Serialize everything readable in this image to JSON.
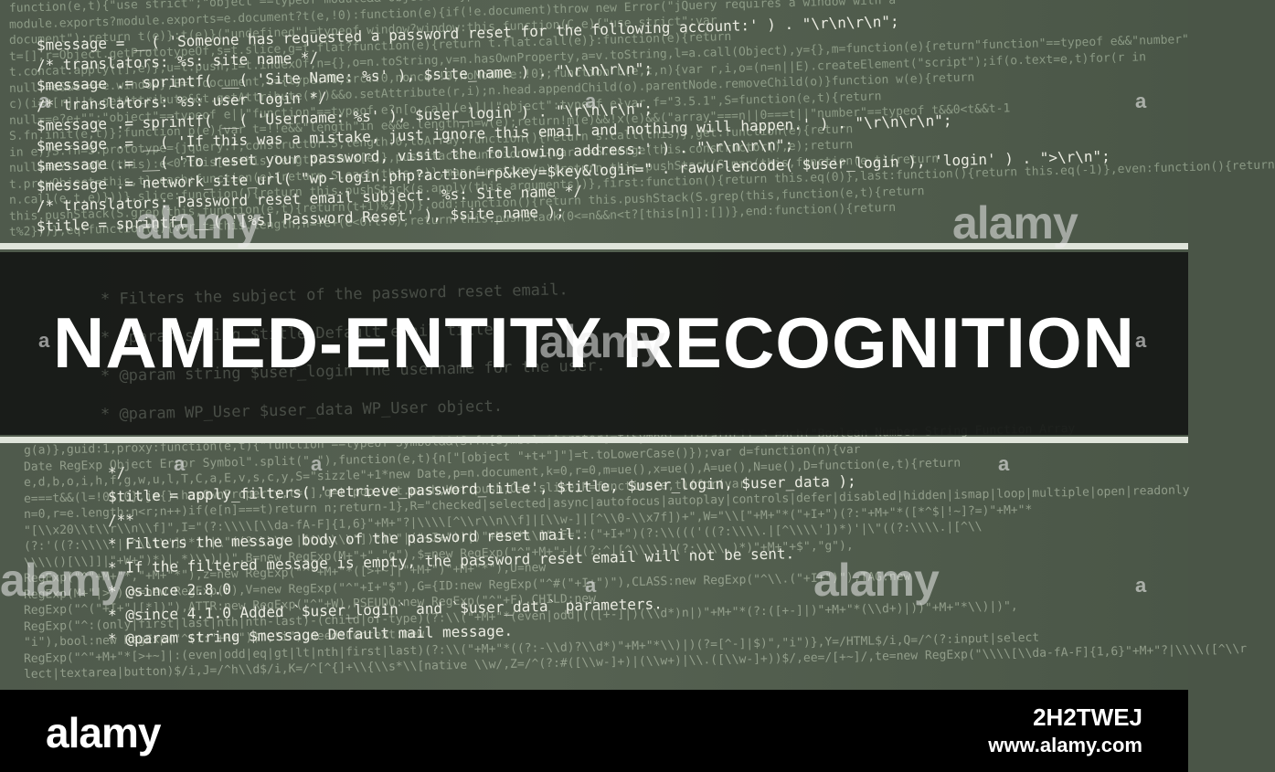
{
  "title": "NAMED-ENTITY RECOGNITION",
  "watermark": {
    "brand": "alamy",
    "mark": "a"
  },
  "footer": {
    "logo": "alamy",
    "image_id": "2H2TWEJ",
    "url": "www.alamy.com"
  },
  "colors": {
    "band": "#161815",
    "divider": "#dfe4da",
    "background": "#4f5a4c",
    "footer": "#000000"
  },
  "code_top": [
    "function(e,t){\"use strict\";\"object\"==typeof module&&\"object\"==typeof",
    "module.exports?module.exports=e.document?t(e,!0):function(e){if(!e.document)throw new Error(\"jQuery requires a window with a",
    "document\");return t(e)}:t(e)}(\"undefined\"!=typeof window?window:this,function(C,e){\"use strict\";var",
    "t=[],r=Object.getPrototypeOf,s=t.slice,g=t.flat?function(e){return t.flat.call(e)}:function(e){return",
    "t.concat.apply([],e)},u=t.push,i=t.indexOf,n={},o=n.toString,v=n.hasOwnProperty,a=v.toString,l=a.call(Object),y={},m=function(e){return\"function\"==typeof e&&\"number\"",
    "null!=e&&e===e.window},E=C.document,c={type:!0,src:!0,nonce:!0,noModule:!0};function b(e,t,n){var r,i,o=(n=n||E).createElement(\"script\");if(o.text=e,t)for(r in",
    "c)(i=t[r]||t.getAttribute&&t.getAttribute(r))&&o.setAttribute(r,i);n.head.appendChild(o).parentNode.removeChild(o)}function w(e){return",
    "null==e?e+\"\":\"object\"==typeof e||\"function\"==typeof e?n[o.call(e)]||\"object\":typeof e}var f=\"3.5.1\",S=function(e,t){return",
    "S.fn.init(e,t)};function p(e){var t=!!e&&\"length\"in e&&e.length,n=w(e);return!m(e)&&!x(e)&&(\"array\"===n||0===t||\"number\"==typeof t&&0<t&&t-1",
    "in e)}S.fn=S.prototype={jquery:f,constructor:S,length:0,toArray:function(){return s.call(this)},get:function(e){return",
    "null==e?s.call(this):e<0?this[e+this.length]:this[e]},pushStack:function(e){var t=S.merge(this.constructor(),e);return",
    "t.prevObject=this,t},each:function(e){return S.each(this,e)},map:function(n){return this.pushStack(S.map(this,function(e,t){return",
    "n.call(e,t,e)}))},slice:function(){return this.pushStack(s.apply(this,arguments))},first:function(){return this.eq(0)},last:function(){return this.eq(-1)},even:function(){return",
    "this.pushStack(S.grep(this,function(e,t){return(t+1)%2}))},odd:function(){return this.pushStack(S.grep(this,function(e,t){return",
    "t%2}))},eq:function(e){var t=this.length,n=+e+(e<0?t:0);return this.pushStack(0<=n&&n<t?[this[n]]:[])},end:function(){return"
  ],
  "php_top": [
    "$message = __( 'Someone has requested a password reset for the following account:' ) . \"\\r\\n\\r\\n\";",
    "/* translators: %s: site name */",
    "$message .= sprintf( __( 'Site Name: %s' ), $site_name ) . \"\\r\\n\\r\\n\";",
    "/* translators: %s: user login */",
    "$message .= sprintf( __( 'Username: %s' ), $user_login ) . \"\\r\\n\\r\\n\";",
    "$message .= __( 'If this was a mistake, just ignore this email and nothing will happen.' ) . \"\\r\\n\\r\\n\";",
    "$message .= __( 'To reset your password, visit the following address:' ) . \"\\r\\n\\r\\n\";",
    "$message .= network_site_url( \"wp-login.php?action=rp&key=$key&login=\" . rawurlencode( $user_login ), 'login' ) . \">\\r\\n\";",
    "/* translators: Password reset email subject. %s: Site name */",
    "$title = sprintf( __( '[%s] Password Reset' ), $site_name );"
  ],
  "code_band": [
    "* Filters the subject of the password reset email.",
    "* @param string $title Default email title.",
    "* @param string $user_login The username for the user.",
    "* @param WP_User $user_data WP_User object."
  ],
  "code_bottom": [
    "g(a)},guid:1,proxy:function(e,t){\"function\"==typeof Symbol&&(S.fn[Symbol.iterator]=t[Symbol.iterator]),S.each(\"Boolean Number String Function Array",
    "Date RegExp Object Error Symbol\".split(\" \"),function(e,t){n[\"[object \"+t+\"]\"]=t.toLowerCase()});var d=function(n){var",
    "e,d,b,o,i,h,f,g,w,u,l,T,C,a,E,v,s,c,y,S=\"sizzle\"+1*new Date,p=n.document,k=0,r=0,m=ue(),x=ue(),A=ue(),N=ue(),D=function(e,t){return",
    "e===t&&(l=!0),0},j={}.hasOwnProperty,t=[],q=t.pop,L=t.push,H=t.push,O=t.slice,P=function(e,t){for(var",
    "n=0,r=e.length;n<r;n++)if(e[n]===t)return n;return-1},R=\"checked|selected|async|autofocus|autoplay|controls|defer|disabled|hidden|ismap|loop|multiple|open|readonly",
    "\"[\\\\x20\\\\t\\\\r\\\\n\\\\f]\",I=\"(?:\\\\\\\\[\\\\da-fA-F]{1,6}\"+M+\"?|\\\\\\\\[^\\\\r\\\\n\\\\f]|[\\\\w-]|[^\\\\0-\\\\x7f])+\",W=\"\\\\[\"+M+\"*(\"+I+\")(?:\"+M+\"*([*^$|!~]?=)\"+M+\"*",
    "(?:'((?:\\\\\\\\.|[^\\\\\\\\'])*)'|\\\"((?:\\\\\\\\.|[^\\\\\\\\\\\"])*)\\\"|(\"+I+\"))|)\"+M+\"*\\\\]\",F=\":(\"+I+\")(?:\\\\((('((?:\\\\\\\\.|[^\\\\\\\\'])*)'|\\\"((?:\\\\\\\\.|[^\\\\",
    "\\\\\\\\()[\\\\]]|\"+W+\")*)|.*)\\\\)|)\",B=new RegExp(M+\"+\",\"g\"),$=new RegExp(\"^\"+M+\"+|((?:^|[^\\\\\\\\])(?:\\\\\\\\.)*)\"+M+\"+$\",\"g\"),",
    "RegExp(\"^\"+M+\"*,\"+M+\"*\"),z=new RegExp(\"^\"+M+\"*([>+~]|\"+M+\")\"+M+\"*\"),U=new",
    "RegExp(M+\"|>\"),X=new RegExp(F),V=new RegExp(\"^\"+I+\"$\"),G={ID:new RegExp(\"^#(\"+I+\")\"),CLASS:new RegExp(\"^\\\\.(\"+I+\")\"),TAG:new",
    "RegExp(\"^(\"+I+\"|[*])\"),ATTR:new RegExp(\"^\"+W),PSEUDO:new RegExp(\"^\"+F),CHILD:new",
    "RegExp(\"^:(only|first|last|nth|nth-last)-(child|of-type)(?:\\\\(\"+M+\"*(even|odd|(([+-]|)(\\\\d*)n|)\"+M+\"*(?:([+-]|)\"+M+\"*(\\\\d+)|))\"+M+\"*\\\\)|)\",",
    "\"i\"),bool:new RegExp(\"^(?:\"+R+\")$\",\"i\"),needsContext:new",
    "RegExp(\"^\"+M+\"*[>+~]|:(even|odd|eq|gt|lt|nth|first|last)(?:\\\\(\"+M+\"*((?:-\\\\d)?\\\\d*)\"+M+\"*\\\\)|)(?=[^-]|$)\",\"i\")},Y=/HTML$/i,Q=/^(?:input|select",
    "lect|textarea|button)$/i,J=/^h\\\\d$/i,K=/^[^{]+\\\\{\\\\s*\\\\[native \\\\w/,Z=/^(?:#([\\\\w-]+)|(\\\\w+)|\\\\.([\\\\w-]+))$/,ee=/[+~]/,te=new RegExp(\"\\\\\\\\[\\\\da-fA-F]{1,6}\"+M+\"?|\\\\\\\\([^\\\\r"
  ],
  "php_bottom": [
    "*/",
    "$title = apply_filters( 'retrieve_password_title', $title, $user_login, $user_data );",
    "/**",
    "* Filters the message body of the password reset mail.",
    "* If the filtered message is empty, the password reset email will not be sent.",
    "* @since 2.8.0",
    "* @since 4.1.0 Added `$user_login` and `$user_data` parameters.",
    "* @param string $message Default mail message."
  ]
}
